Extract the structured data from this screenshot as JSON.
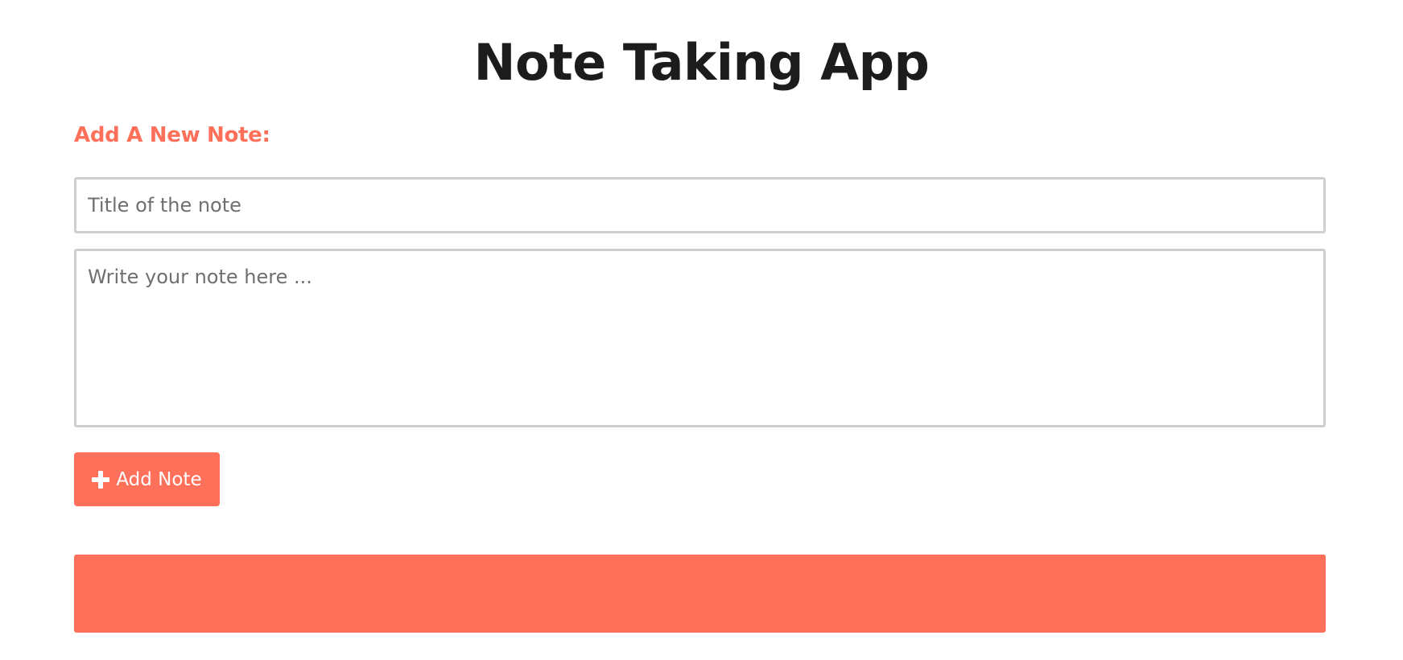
{
  "header": {
    "title": "Note Taking App"
  },
  "form": {
    "heading": "Add A New Note:",
    "title_input": {
      "value": "",
      "placeholder": "Title of the note"
    },
    "note_textarea": {
      "value": "",
      "placeholder": "Write your note here ..."
    },
    "add_button": {
      "label": "Add Note",
      "icon": "plus-icon"
    }
  },
  "notes_section": {
    "notes": []
  },
  "colors": {
    "accent": "#ff705a",
    "title_text": "#1c1c1c",
    "input_border": "#cfcfcf",
    "placeholder_text": "#6f6f6f",
    "background": "#ffffff"
  }
}
